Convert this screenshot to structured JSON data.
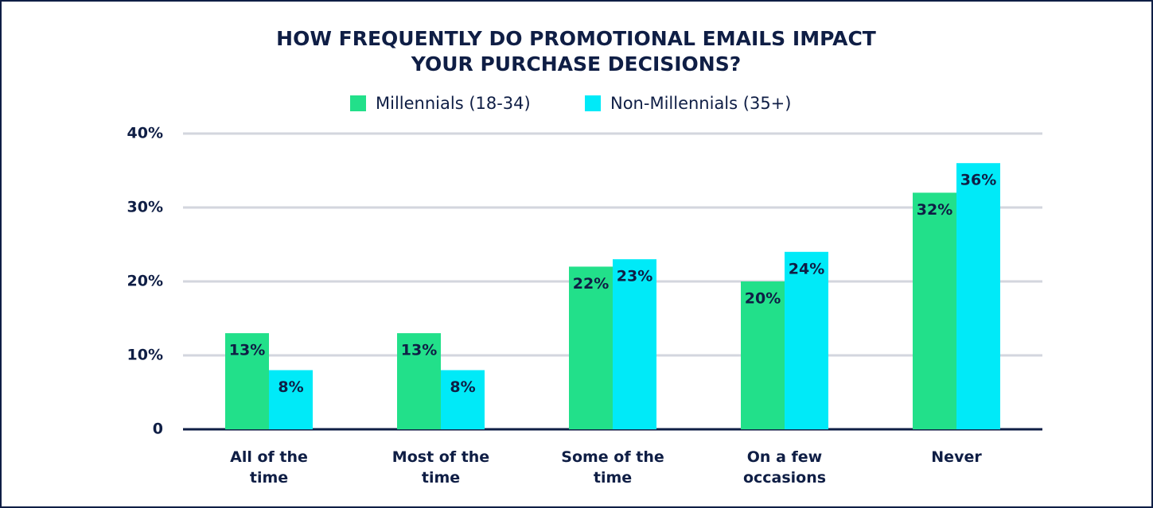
{
  "chart_data": {
    "type": "bar",
    "title": "HOW FREQUENTLY DO PROMOTIONAL EMAILS IMPACT YOUR PURCHASE DECISIONS?",
    "title_lines": [
      "HOW FREQUENTLY DO PROMOTIONAL EMAILS IMPACT",
      "YOUR PURCHASE DECISIONS?"
    ],
    "categories": [
      "All of the time",
      "Most of the time",
      "Some of the time",
      "On a few occasions",
      "Never"
    ],
    "series": [
      {
        "name": "Millennials (18-34)",
        "color": "#22e08a",
        "values": [
          13,
          13,
          22,
          20,
          32
        ],
        "value_labels": [
          "13%",
          "13%",
          "22%",
          "20%",
          "32%"
        ]
      },
      {
        "name": "Non-Millennials (35+)",
        "color": "#00eaf8",
        "values": [
          8,
          8,
          23,
          24,
          36
        ],
        "value_labels": [
          "8%",
          "8%",
          "23%",
          "24%",
          "36%"
        ]
      }
    ],
    "ylim": [
      0,
      40
    ],
    "yticks": [
      0,
      {
        "value": 10,
        "label": "10%"
      },
      {
        "value": 20,
        "label": "20%"
      },
      {
        "value": 30,
        "label": "30%"
      },
      {
        "value": 40,
        "label": "40%"
      }
    ],
    "grid": true
  }
}
